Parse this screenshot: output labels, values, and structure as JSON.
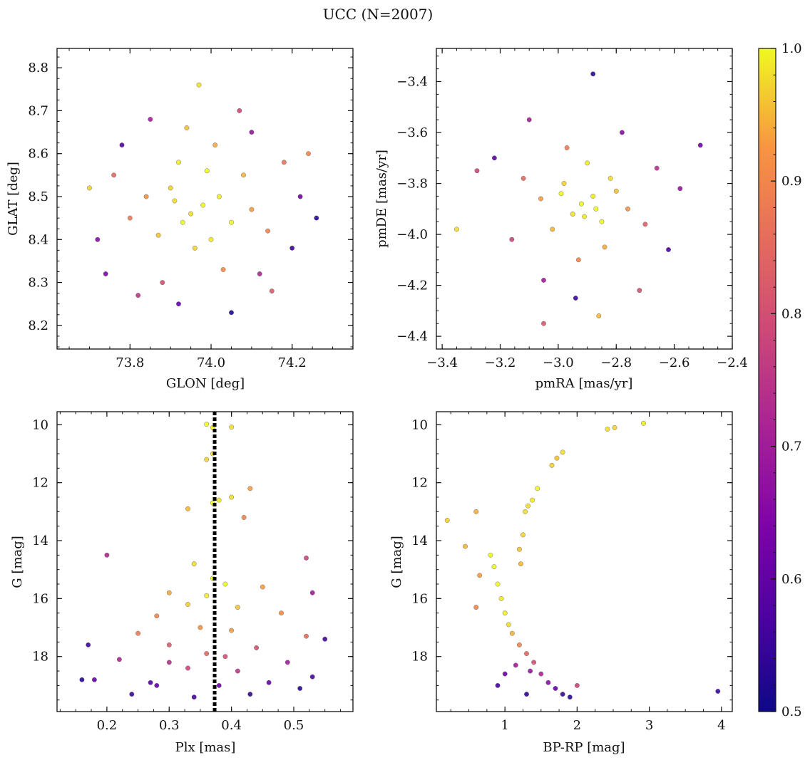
{
  "figure": {
    "title": "UCC (N=2007)"
  },
  "colorbar": {
    "min": 0.5,
    "max": 1.0,
    "ticks": [
      0.5,
      0.6,
      0.7,
      0.8,
      0.9,
      1.0
    ],
    "tick_labels": [
      "0.5",
      "0.6",
      "0.7",
      "0.8",
      "0.9",
      "1.0"
    ],
    "colormap": "plasma"
  },
  "colors": {
    "marker_edge": "#555555",
    "frame": "#111111",
    "vline": "#000000"
  },
  "chart_data": [
    {
      "type": "scatter",
      "id": "glon-glat",
      "xlabel": "GLON [deg]",
      "ylabel": "GLAT [deg]",
      "xlim": [
        73.62,
        74.35
      ],
      "ylim": [
        8.145,
        8.845
      ],
      "xticks": [
        73.8,
        74.0,
        74.2
      ],
      "xtick_labels": [
        "73.8",
        "74.0",
        "74.2"
      ],
      "yticks": [
        8.2,
        8.3,
        8.4,
        8.5,
        8.6,
        8.7,
        8.8
      ],
      "ytick_labels": [
        "8.2",
        "8.3",
        "8.4",
        "8.5",
        "8.6",
        "8.7",
        "8.8"
      ],
      "xtick_minor": 0.05,
      "ytick_minor": 0.025,
      "series": [
        {
          "name": "members",
          "points": [
            [
              73.98,
              8.48,
              1.0
            ],
            [
              73.95,
              8.46,
              0.98
            ],
            [
              74.02,
              8.5,
              0.99
            ],
            [
              73.9,
              8.52,
              0.97
            ],
            [
              74.05,
              8.44,
              1.0
            ],
            [
              73.87,
              8.41,
              0.96
            ],
            [
              74.08,
              8.55,
              0.95
            ],
            [
              73.92,
              8.58,
              0.99
            ],
            [
              74.1,
              8.47,
              0.93
            ],
            [
              73.84,
              8.5,
              0.92
            ],
            [
              73.96,
              8.38,
              0.97
            ],
            [
              74.01,
              8.62,
              0.94
            ],
            [
              73.8,
              8.45,
              0.88
            ],
            [
              74.14,
              8.42,
              0.9
            ],
            [
              73.94,
              8.66,
              0.96
            ],
            [
              74.03,
              8.33,
              0.91
            ],
            [
              73.76,
              8.55,
              0.85
            ],
            [
              74.18,
              8.58,
              0.87
            ],
            [
              73.88,
              8.3,
              0.8
            ],
            [
              74.12,
              8.32,
              0.72
            ],
            [
              73.85,
              8.68,
              0.7
            ],
            [
              74.07,
              8.7,
              0.78
            ],
            [
              73.72,
              8.4,
              0.66
            ],
            [
              74.22,
              8.5,
              0.62
            ],
            [
              73.78,
              8.62,
              0.58
            ],
            [
              74.2,
              8.38,
              0.55
            ],
            [
              73.92,
              8.25,
              0.6
            ],
            [
              74.05,
              8.23,
              0.52
            ],
            [
              73.97,
              8.76,
              0.98
            ],
            [
              74.1,
              8.65,
              0.68
            ],
            [
              73.74,
              8.32,
              0.64
            ],
            [
              74.26,
              8.45,
              0.53
            ],
            [
              73.82,
              8.27,
              0.75
            ],
            [
              74.15,
              8.28,
              0.82
            ],
            [
              73.7,
              8.52,
              0.97
            ],
            [
              74.24,
              8.6,
              0.9
            ],
            [
              73.99,
              8.56,
              1.0
            ],
            [
              73.93,
              8.44,
              1.0
            ],
            [
              74.0,
              8.4,
              0.99
            ],
            [
              73.91,
              8.49,
              0.98
            ]
          ]
        }
      ]
    },
    {
      "type": "scatter",
      "id": "pmra-pmde",
      "xlabel": "pmRA [mas/yr]",
      "ylabel": "pmDE [mas/yr]",
      "xlim": [
        -3.42,
        -2.4
      ],
      "ylim": [
        -4.45,
        -3.27
      ],
      "xticks": [
        -3.4,
        -3.2,
        -3.0,
        -2.8,
        -2.6,
        -2.4
      ],
      "xtick_labels": [
        "−3.4",
        "−3.2",
        "−3.0",
        "−2.8",
        "−2.6",
        "−2.4"
      ],
      "yticks": [
        -4.4,
        -4.2,
        -4.0,
        -3.8,
        -3.6,
        -3.4
      ],
      "ytick_labels": [
        "−4.4",
        "−4.2",
        "−4.0",
        "−3.8",
        "−3.6",
        "−3.4"
      ],
      "xtick_minor": 0.05,
      "ytick_minor": 0.05,
      "series": [
        {
          "name": "members",
          "points": [
            [
              -2.92,
              -3.88,
              1.0
            ],
            [
              -2.88,
              -3.85,
              0.99
            ],
            [
              -2.95,
              -3.92,
              0.98
            ],
            [
              -2.85,
              -3.95,
              1.0
            ],
            [
              -2.98,
              -3.8,
              0.97
            ],
            [
              -2.8,
              -3.83,
              0.96
            ],
            [
              -3.02,
              -3.98,
              0.95
            ],
            [
              -2.9,
              -3.72,
              0.99
            ],
            [
              -2.84,
              -4.05,
              0.94
            ],
            [
              -3.06,
              -3.86,
              0.93
            ],
            [
              -2.76,
              -3.9,
              0.92
            ],
            [
              -2.93,
              -4.1,
              0.9
            ],
            [
              -2.97,
              -3.66,
              0.88
            ],
            [
              -3.12,
              -3.78,
              0.85
            ],
            [
              -2.7,
              -3.96,
              0.83
            ],
            [
              -3.16,
              -4.02,
              0.78
            ],
            [
              -2.66,
              -3.74,
              0.74
            ],
            [
              -3.05,
              -4.18,
              0.7
            ],
            [
              -2.78,
              -3.6,
              0.66
            ],
            [
              -3.22,
              -3.7,
              0.6
            ],
            [
              -2.62,
              -4.06,
              0.57
            ],
            [
              -2.88,
              -3.37,
              0.53
            ],
            [
              -3.35,
              -3.98,
              0.98
            ],
            [
              -2.51,
              -3.65,
              0.62
            ],
            [
              -3.05,
              -4.35,
              0.82
            ],
            [
              -2.86,
              -4.32,
              0.95
            ],
            [
              -3.28,
              -3.75,
              0.78
            ],
            [
              -2.58,
              -3.82,
              0.68
            ],
            [
              -2.94,
              -4.25,
              0.55
            ],
            [
              -3.1,
              -3.55,
              0.7
            ],
            [
              -2.72,
              -4.22,
              0.8
            ],
            [
              -2.99,
              -3.84,
              1.0
            ],
            [
              -2.87,
              -3.9,
              1.0
            ],
            [
              -2.91,
              -3.93,
              0.99
            ],
            [
              -2.82,
              -3.78,
              0.98
            ]
          ]
        }
      ]
    },
    {
      "type": "scatter",
      "id": "plx-g",
      "xlabel": "Plx [mas]",
      "ylabel": "G [mag]",
      "xlim": [
        0.12,
        0.595
      ],
      "ylim": [
        19.9,
        9.55
      ],
      "y_inverted": true,
      "xticks": [
        0.2,
        0.3,
        0.4,
        0.5
      ],
      "xtick_labels": [
        "0.2",
        "0.3",
        "0.4",
        "0.5"
      ],
      "yticks": [
        10,
        12,
        14,
        16,
        18
      ],
      "ytick_labels": [
        "10",
        "12",
        "14",
        "16",
        "18"
      ],
      "xtick_minor": 0.025,
      "ytick_minor": 0.5,
      "vline": {
        "x": 0.373,
        "style": "dotted"
      },
      "series": [
        {
          "name": "members",
          "points": [
            [
              0.36,
              9.98,
              1.0
            ],
            [
              0.37,
              10.1,
              0.99
            ],
            [
              0.4,
              10.08,
              0.98
            ],
            [
              0.36,
              11.2,
              0.97
            ],
            [
              0.37,
              11.0,
              0.98
            ],
            [
              0.37,
              12.7,
              1.0
            ],
            [
              0.38,
              12.6,
              0.99
            ],
            [
              0.4,
              12.5,
              0.98
            ],
            [
              0.33,
              12.9,
              0.95
            ],
            [
              0.43,
              12.2,
              0.93
            ],
            [
              0.42,
              13.2,
              0.9
            ],
            [
              0.34,
              14.8,
              0.98
            ],
            [
              0.37,
              15.3,
              1.0
            ],
            [
              0.36,
              15.9,
              0.99
            ],
            [
              0.39,
              15.5,
              1.0
            ],
            [
              0.33,
              16.2,
              0.97
            ],
            [
              0.41,
              16.3,
              0.96
            ],
            [
              0.3,
              15.8,
              0.94
            ],
            [
              0.45,
              15.6,
              0.93
            ],
            [
              0.28,
              16.6,
              0.9
            ],
            [
              0.48,
              16.5,
              0.91
            ],
            [
              0.35,
              17.0,
              0.92
            ],
            [
              0.4,
              17.1,
              0.93
            ],
            [
              0.25,
              17.2,
              0.88
            ],
            [
              0.52,
              17.3,
              0.86
            ],
            [
              0.2,
              14.5,
              0.72
            ],
            [
              0.52,
              14.6,
              0.78
            ],
            [
              0.53,
              15.8,
              0.7
            ],
            [
              0.3,
              17.6,
              0.82
            ],
            [
              0.44,
              17.7,
              0.8
            ],
            [
              0.36,
              17.9,
              0.85
            ],
            [
              0.17,
              17.6,
              0.55
            ],
            [
              0.55,
              17.4,
              0.56
            ],
            [
              0.22,
              18.1,
              0.72
            ],
            [
              0.49,
              18.2,
              0.7
            ],
            [
              0.33,
              18.4,
              0.78
            ],
            [
              0.41,
              18.5,
              0.75
            ],
            [
              0.18,
              18.8,
              0.6
            ],
            [
              0.27,
              18.9,
              0.58
            ],
            [
              0.38,
              19.0,
              0.62
            ],
            [
              0.46,
              18.9,
              0.6
            ],
            [
              0.53,
              18.7,
              0.57
            ],
            [
              0.16,
              18.8,
              0.53
            ],
            [
              0.24,
              19.3,
              0.55
            ],
            [
              0.34,
              19.4,
              0.56
            ],
            [
              0.43,
              19.3,
              0.54
            ],
            [
              0.51,
              19.1,
              0.53
            ],
            [
              0.3,
              18.2,
              0.74
            ],
            [
              0.39,
              18.0,
              0.8
            ],
            [
              0.28,
              19.0,
              0.6
            ]
          ]
        }
      ]
    },
    {
      "type": "scatter",
      "id": "bprp-g",
      "xlabel": "BP-RP [mag]",
      "ylabel": "G [mag]",
      "xlim": [
        0.05,
        4.15
      ],
      "ylim": [
        19.9,
        9.55
      ],
      "y_inverted": true,
      "xticks": [
        1,
        2,
        3,
        4
      ],
      "xtick_labels": [
        "1",
        "2",
        "3",
        "4"
      ],
      "yticks": [
        10,
        12,
        14,
        16,
        18
      ],
      "ytick_labels": [
        "10",
        "12",
        "14",
        "16",
        "18"
      ],
      "xtick_minor": 0.25,
      "ytick_minor": 0.5,
      "series": [
        {
          "name": "members",
          "points": [
            [
              2.92,
              9.95,
              0.99
            ],
            [
              2.42,
              10.15,
              0.98
            ],
            [
              2.52,
              10.1,
              0.97
            ],
            [
              1.8,
              10.95,
              0.98
            ],
            [
              1.72,
              11.15,
              0.96
            ],
            [
              1.65,
              11.4,
              0.97
            ],
            [
              1.45,
              12.2,
              1.0
            ],
            [
              1.38,
              12.6,
              0.99
            ],
            [
              1.32,
              12.8,
              0.98
            ],
            [
              1.28,
              13.0,
              0.98
            ],
            [
              1.25,
              13.8,
              0.97
            ],
            [
              1.2,
              14.3,
              0.96
            ],
            [
              1.22,
              14.8,
              0.95
            ],
            [
              0.8,
              14.5,
              1.0
            ],
            [
              0.85,
              14.9,
              1.0
            ],
            [
              0.9,
              15.5,
              1.0
            ],
            [
              0.95,
              16.0,
              0.99
            ],
            [
              1.0,
              16.5,
              0.99
            ],
            [
              1.05,
              16.9,
              0.98
            ],
            [
              1.1,
              17.2,
              0.95
            ],
            [
              1.2,
              17.6,
              0.9
            ],
            [
              1.3,
              17.9,
              0.85
            ],
            [
              1.4,
              18.2,
              0.8
            ],
            [
              1.5,
              18.6,
              0.72
            ],
            [
              1.6,
              18.9,
              0.66
            ],
            [
              1.7,
              19.1,
              0.6
            ],
            [
              1.8,
              19.3,
              0.55
            ],
            [
              1.9,
              19.4,
              0.53
            ],
            [
              0.2,
              13.3,
              0.97
            ],
            [
              0.45,
              14.2,
              0.95
            ],
            [
              0.6,
              13.0,
              0.94
            ],
            [
              0.65,
              15.2,
              0.93
            ],
            [
              0.6,
              16.3,
              0.9
            ],
            [
              1.35,
              18.5,
              0.68
            ],
            [
              1.15,
              18.3,
              0.7
            ],
            [
              1.0,
              18.6,
              0.62
            ],
            [
              0.9,
              19.0,
              0.56
            ],
            [
              1.3,
              19.3,
              0.54
            ],
            [
              3.95,
              19.2,
              0.55
            ],
            [
              2.0,
              19.0,
              0.78
            ]
          ]
        }
      ]
    }
  ]
}
